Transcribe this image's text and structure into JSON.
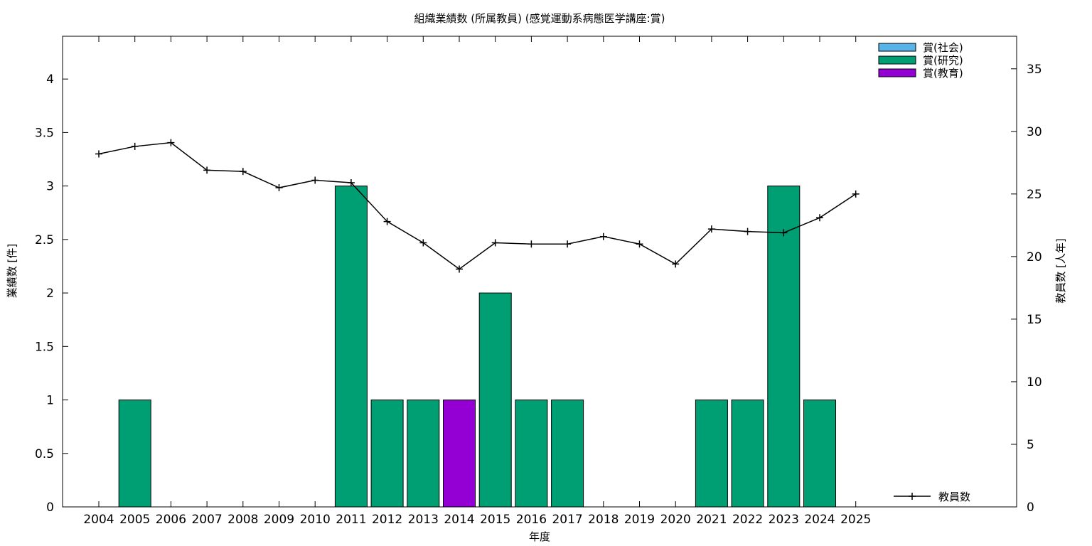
{
  "chart_data": {
    "type": "bar",
    "title": "組織業績数 (所属教員) (感覚運動系病態医学講座:賞)",
    "xlabel": "年度",
    "ylabel": "業績数 [件]",
    "y2label": "教員数 [人年]",
    "categories": [
      "2004",
      "2005",
      "2006",
      "2007",
      "2008",
      "2009",
      "2010",
      "2011",
      "2012",
      "2013",
      "2014",
      "2015",
      "2016",
      "2017",
      "2018",
      "2019",
      "2020",
      "2021",
      "2022",
      "2023",
      "2024",
      "2025"
    ],
    "ylim": [
      0,
      4.4
    ],
    "yticks": [
      "0",
      "0.5",
      "1",
      "1.5",
      "2",
      "2.5",
      "3",
      "3.5",
      "4"
    ],
    "y2lim": [
      0,
      37.6
    ],
    "y2ticks": [
      "0",
      "5",
      "10",
      "15",
      "20",
      "25",
      "30",
      "35"
    ],
    "grid": false,
    "legend_position": "top-right",
    "series": [
      {
        "name": "賞(社会)",
        "kind": "bar",
        "color": "#56b4e9",
        "values": [
          0,
          0,
          0,
          0,
          0,
          0,
          0,
          0,
          0,
          0,
          0,
          0,
          0,
          0,
          0,
          0,
          0,
          0,
          0,
          0,
          0,
          0
        ]
      },
      {
        "name": "賞(研究)",
        "kind": "bar",
        "color": "#009e73",
        "values": [
          0,
          1,
          0,
          0,
          0,
          0,
          0,
          3,
          1,
          1,
          0,
          2,
          1,
          1,
          0,
          0,
          0,
          1,
          1,
          3,
          1,
          0
        ]
      },
      {
        "name": "賞(教育)",
        "kind": "bar",
        "color": "#9400d3",
        "values": [
          0,
          0,
          0,
          0,
          0,
          0,
          0,
          0,
          0,
          0,
          1,
          0,
          0,
          0,
          0,
          0,
          0,
          0,
          0,
          0,
          0,
          0
        ]
      },
      {
        "name": "教員数",
        "kind": "line",
        "axis": "y2",
        "color": "#000000",
        "values": [
          28.2,
          28.8,
          29.1,
          26.9,
          26.8,
          25.5,
          26.1,
          25.9,
          22.8,
          21.1,
          19.0,
          21.1,
          21.0,
          21.0,
          21.6,
          21.0,
          19.4,
          22.2,
          22.0,
          21.9,
          23.1,
          25.0
        ]
      }
    ]
  }
}
